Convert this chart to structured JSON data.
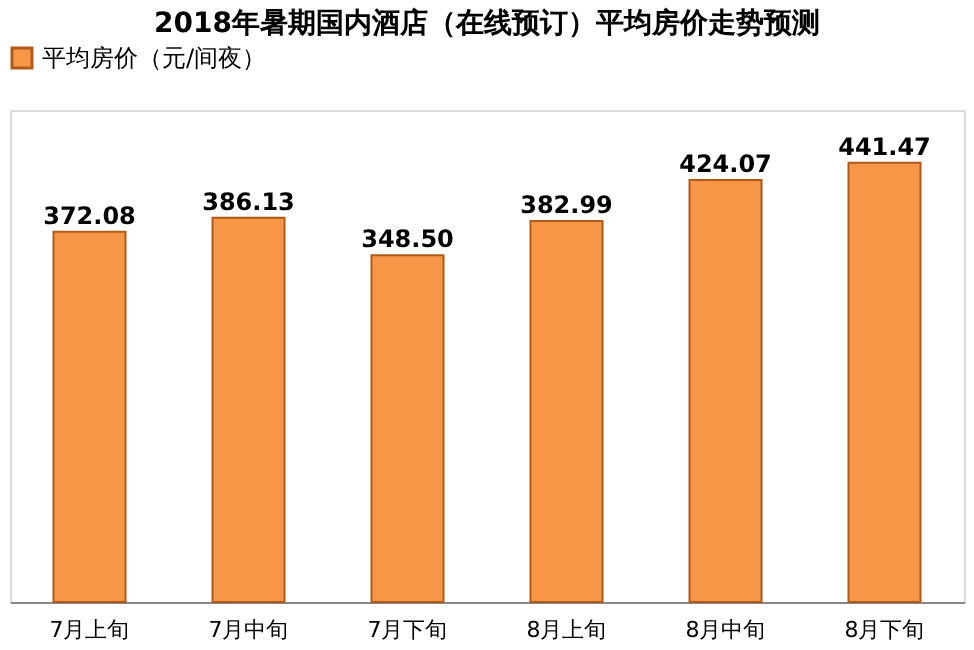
{
  "chart_data": {
    "type": "bar",
    "title": "2018年暑期国内酒店（在线预订）平均房价走势预测",
    "categories": [
      "7月上旬",
      "7月中旬",
      "7月下旬",
      "8月上旬",
      "8月中旬",
      "8月下旬"
    ],
    "series": [
      {
        "name": "平均房价（元/间夜）",
        "color": "#f79646",
        "values": [
          372.08,
          386.13,
          348.5,
          382.99,
          424.07,
          441.47
        ],
        "value_labels": [
          "372.08",
          "386.13",
          "348.50",
          "382.99",
          "424.07",
          "441.47"
        ]
      }
    ],
    "legend": "top",
    "grid": false,
    "tick_labels": "x"
  }
}
